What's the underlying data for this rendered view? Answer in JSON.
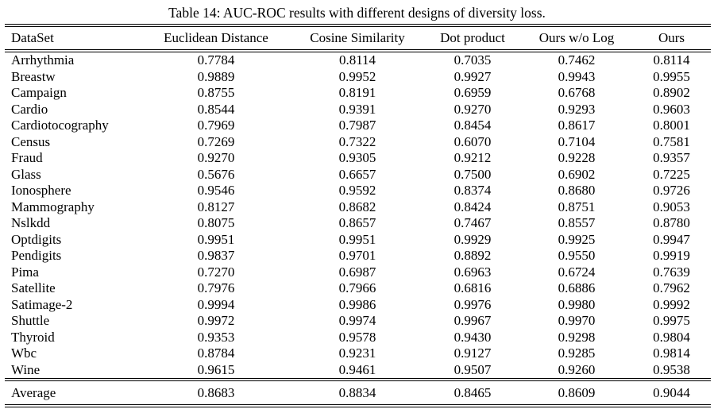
{
  "title": "Table 14: AUC-ROC results with different designs of diversity loss.",
  "table": {
    "columns": [
      "DataSet",
      "Euclidean Distance",
      "Cosine Similarity",
      "Dot product",
      "Ours w/o Log",
      "Ours"
    ],
    "rows": [
      [
        "Arrhythmia",
        "0.7784",
        "0.8114",
        "0.7035",
        "0.7462",
        "0.8114"
      ],
      [
        "Breastw",
        "0.9889",
        "0.9952",
        "0.9927",
        "0.9943",
        "0.9955"
      ],
      [
        "Campaign",
        "0.8755",
        "0.8191",
        "0.6959",
        "0.6768",
        "0.8902"
      ],
      [
        "Cardio",
        "0.8544",
        "0.9391",
        "0.9270",
        "0.9293",
        "0.9603"
      ],
      [
        "Cardiotocography",
        "0.7969",
        "0.7987",
        "0.8454",
        "0.8617",
        "0.8001"
      ],
      [
        "Census",
        "0.7269",
        "0.7322",
        "0.6070",
        "0.7104",
        "0.7581"
      ],
      [
        "Fraud",
        "0.9270",
        "0.9305",
        "0.9212",
        "0.9228",
        "0.9357"
      ],
      [
        "Glass",
        "0.5676",
        "0.6657",
        "0.7500",
        "0.6902",
        "0.7225"
      ],
      [
        "Ionosphere",
        "0.9546",
        "0.9592",
        "0.8374",
        "0.8680",
        "0.9726"
      ],
      [
        "Mammography",
        "0.8127",
        "0.8682",
        "0.8424",
        "0.8751",
        "0.9053"
      ],
      [
        "Nslkdd",
        "0.8075",
        "0.8657",
        "0.7467",
        "0.8557",
        "0.8780"
      ],
      [
        "Optdigits",
        "0.9951",
        "0.9951",
        "0.9929",
        "0.9925",
        "0.9947"
      ],
      [
        "Pendigits",
        "0.9837",
        "0.9701",
        "0.8892",
        "0.9550",
        "0.9919"
      ],
      [
        "Pima",
        "0.7270",
        "0.6987",
        "0.6963",
        "0.6724",
        "0.7639"
      ],
      [
        "Satellite",
        "0.7976",
        "0.7966",
        "0.6816",
        "0.6886",
        "0.7962"
      ],
      [
        "Satimage-2",
        "0.9994",
        "0.9986",
        "0.9976",
        "0.9980",
        "0.9992"
      ],
      [
        "Shuttle",
        "0.9972",
        "0.9974",
        "0.9967",
        "0.9970",
        "0.9975"
      ],
      [
        "Thyroid",
        "0.9353",
        "0.9578",
        "0.9430",
        "0.9298",
        "0.9804"
      ],
      [
        "Wbc",
        "0.8784",
        "0.9231",
        "0.9127",
        "0.9285",
        "0.9814"
      ],
      [
        "Wine",
        "0.9615",
        "0.9461",
        "0.9507",
        "0.9260",
        "0.9538"
      ]
    ],
    "footer": [
      "Average",
      "0.8683",
      "0.8834",
      "0.8465",
      "0.8609",
      "0.9044"
    ]
  }
}
